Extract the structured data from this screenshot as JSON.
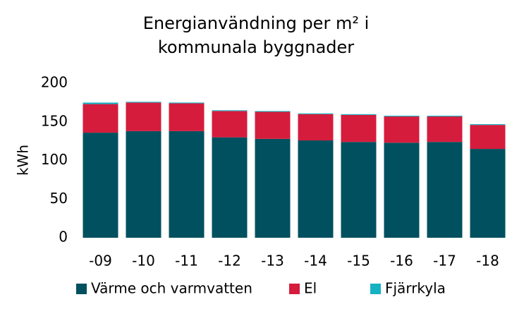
{
  "chart_data": {
    "type": "stacked_bar",
    "title": "Energianvändning per m² i kommunala byggnader",
    "y_label": "kWh",
    "categories": [
      "-09",
      "-10",
      "-11",
      "-12",
      "-13",
      "-14",
      "-15",
      "-16",
      "-17",
      "-18"
    ],
    "series": [
      {
        "name": "Värme och varmvatten",
        "color": "#00505f",
        "values": [
          136,
          138,
          138,
          130,
          128,
          126,
          124,
          123,
          124,
          115
        ]
      },
      {
        "name": "El",
        "color": "#d51c3c",
        "values": [
          37,
          37,
          36,
          34,
          35,
          34,
          35,
          34,
          33,
          31
        ]
      },
      {
        "name": "Fjärrkyla",
        "color": "#15b2c4",
        "values": [
          2,
          1,
          1,
          1,
          1,
          1,
          1,
          1,
          1,
          1
        ]
      }
    ],
    "ylim": [
      0,
      200
    ],
    "yticks": [
      0,
      50,
      100,
      150,
      200
    ],
    "grid": false,
    "legend": "bottom"
  }
}
